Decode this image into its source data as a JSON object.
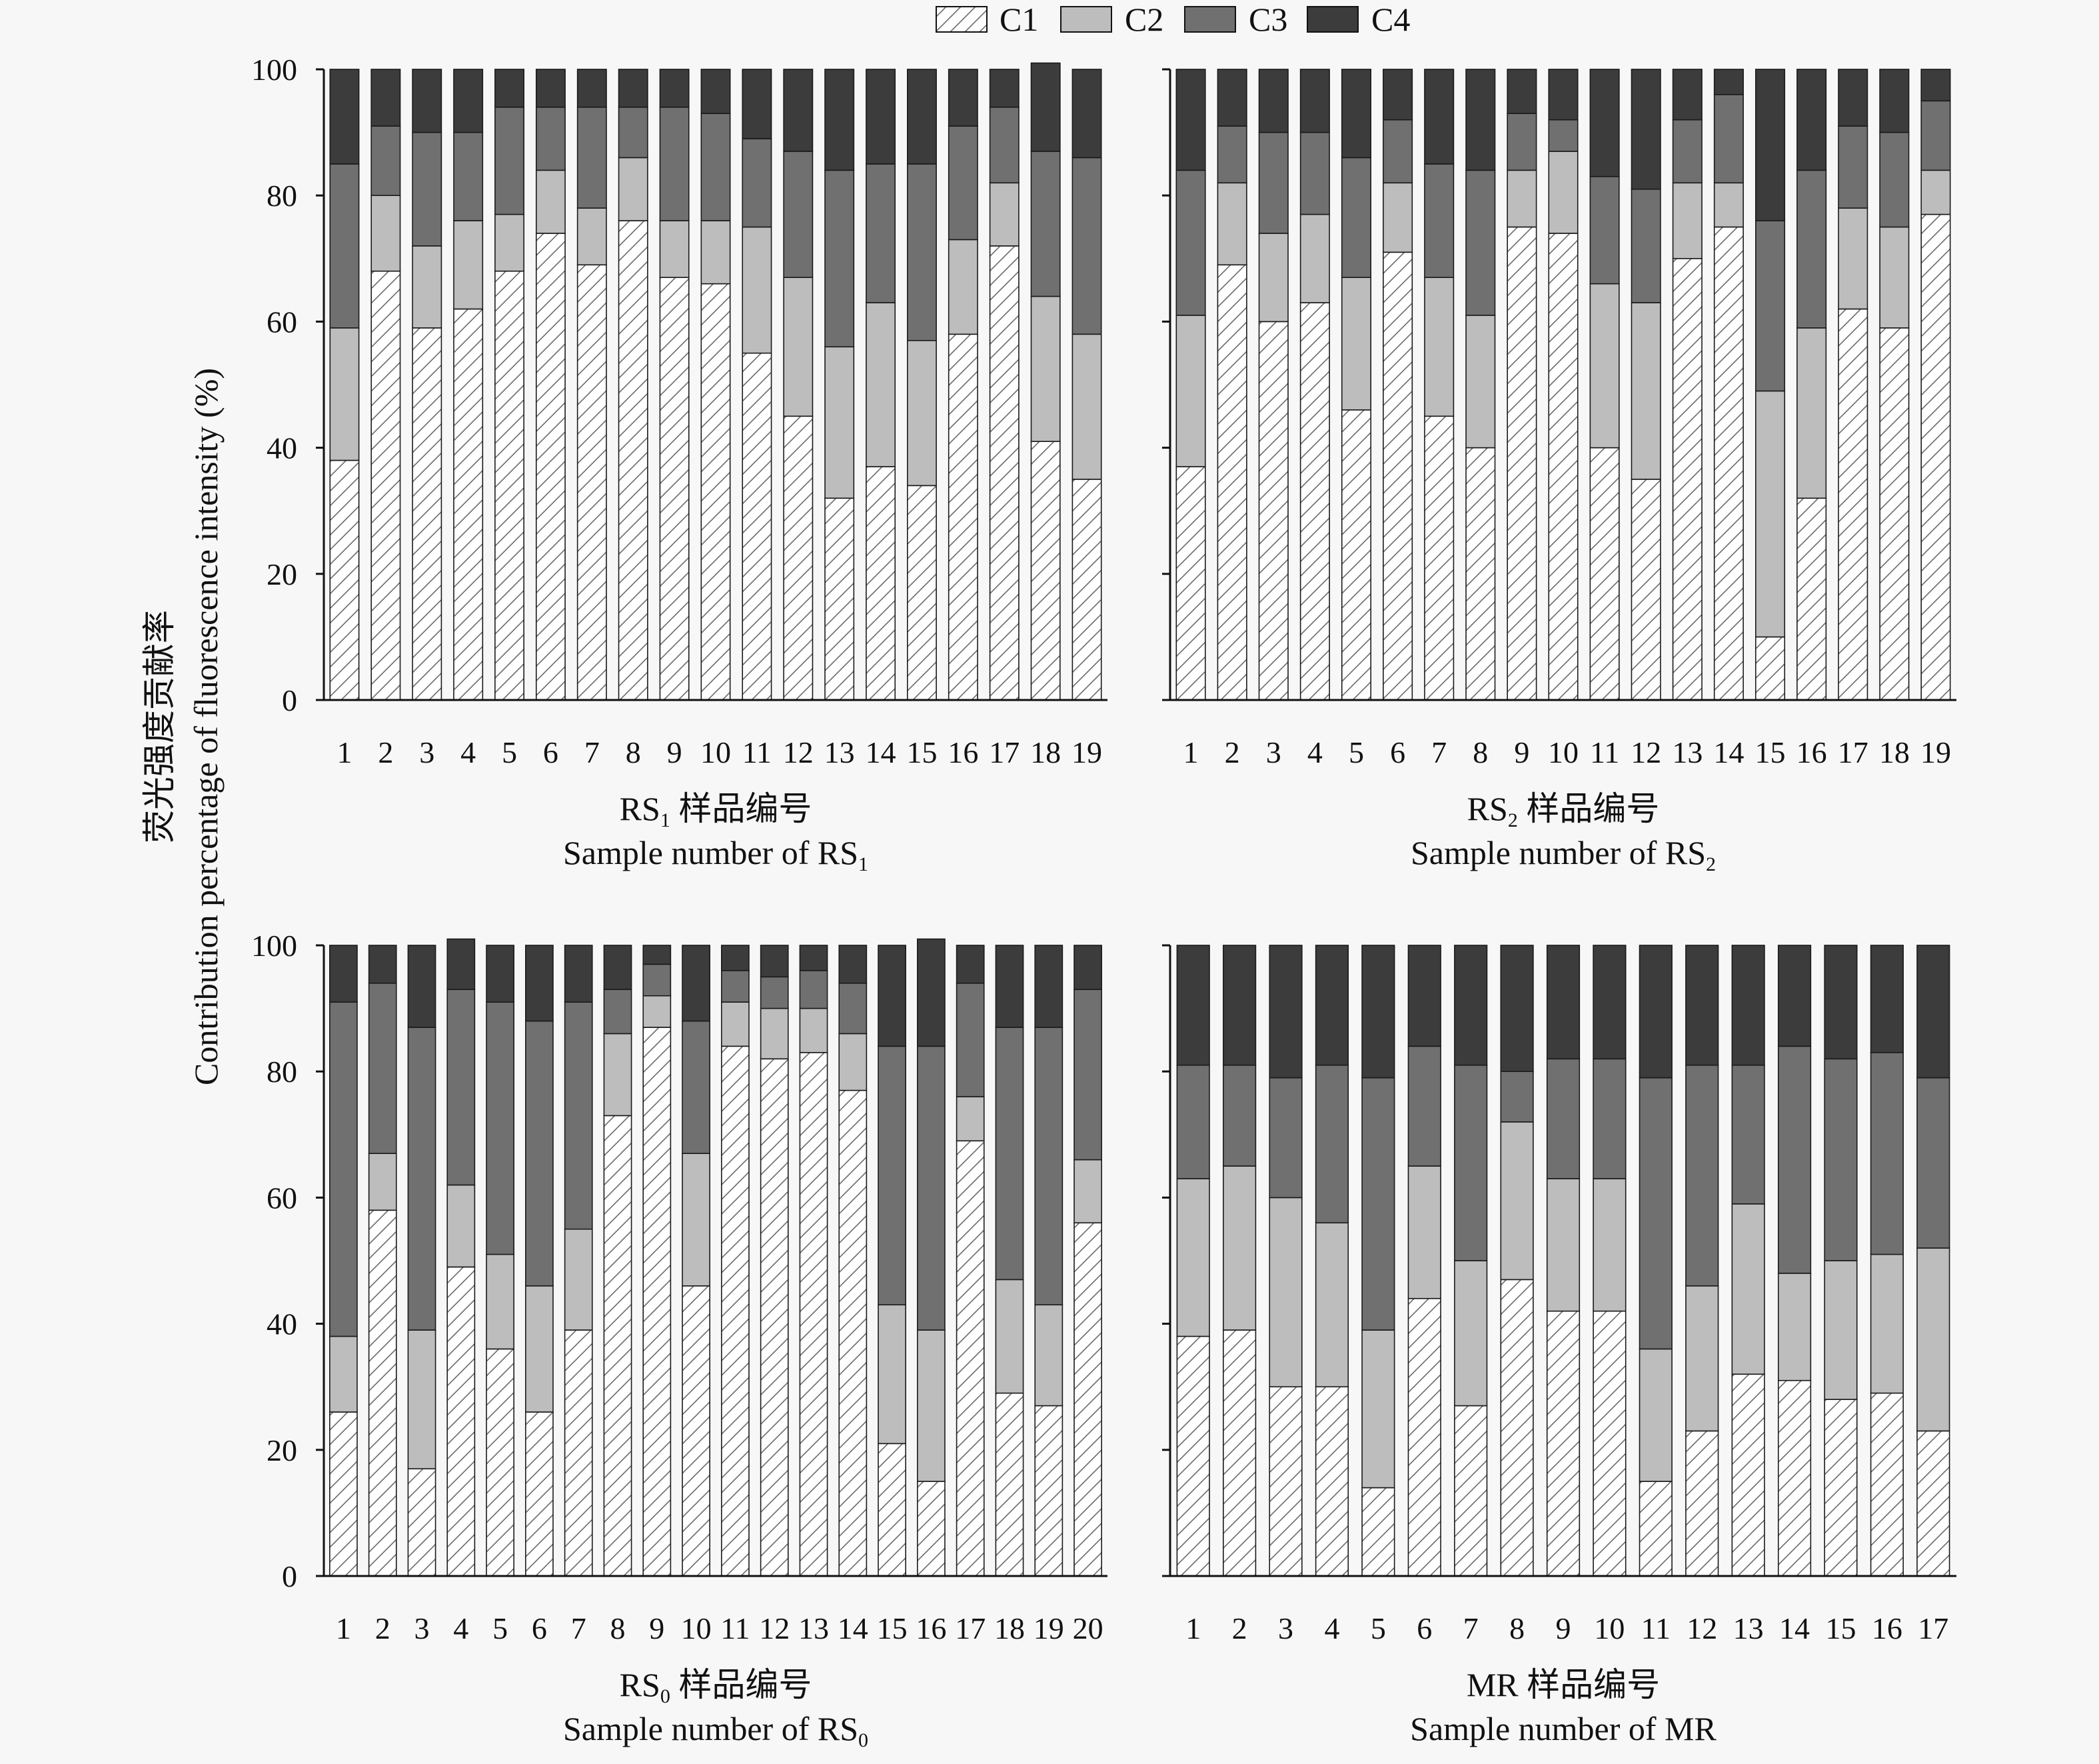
{
  "legend": [
    {
      "label": "C1",
      "pattern": "hatch",
      "color": "#ffffff"
    },
    {
      "label": "C2",
      "color": "#bdbdbd"
    },
    {
      "label": "C3",
      "color": "#707070"
    },
    {
      "label": "C4",
      "color": "#3c3c3c"
    }
  ],
  "ylabel_cn": "荧光强度贡献率",
  "ylabel_en": "Contribution percentage of fluorescence intensity (%)",
  "chart_data": [
    {
      "type": "bar",
      "stacked": true,
      "panel": "top-left",
      "xlabel_cn_prefix": "RS",
      "xlabel_cn_sub": "1",
      "xlabel_cn_suffix": " 样品编号",
      "xlabel_en_prefix": "Sample number of RS",
      "xlabel_en_sub": "1",
      "ylim": [
        0,
        100
      ],
      "yticks": [
        "0",
        "20",
        "40",
        "60",
        "80",
        "100"
      ],
      "categories": [
        "1",
        "2",
        "3",
        "4",
        "5",
        "6",
        "7",
        "8",
        "9",
        "10",
        "11",
        "12",
        "13",
        "14",
        "15",
        "16",
        "17",
        "18",
        "19"
      ],
      "series": [
        {
          "name": "C1",
          "values": [
            38,
            68,
            59,
            62,
            68,
            74,
            69,
            76,
            67,
            66,
            55,
            45,
            32,
            37,
            34,
            58,
            72,
            41,
            35
          ]
        },
        {
          "name": "C2",
          "values": [
            21,
            12,
            13,
            14,
            9,
            10,
            9,
            10,
            9,
            10,
            20,
            22,
            24,
            26,
            23,
            15,
            10,
            23,
            23
          ]
        },
        {
          "name": "C3",
          "values": [
            26,
            11,
            18,
            14,
            17,
            10,
            16,
            8,
            18,
            17,
            14,
            20,
            28,
            22,
            28,
            18,
            12,
            23,
            28
          ]
        },
        {
          "name": "C4",
          "values": [
            15,
            9,
            10,
            10,
            6,
            6,
            6,
            6,
            6,
            7,
            11,
            13,
            16,
            15,
            15,
            9,
            6,
            14,
            14
          ]
        }
      ]
    },
    {
      "type": "bar",
      "stacked": true,
      "panel": "top-right",
      "xlabel_cn_prefix": "RS",
      "xlabel_cn_sub": "2",
      "xlabel_cn_suffix": " 样品编号",
      "xlabel_en_prefix": "Sample number of RS",
      "xlabel_en_sub": "2",
      "ylim": [
        0,
        100
      ],
      "yticks": [],
      "categories": [
        "1",
        "2",
        "3",
        "4",
        "5",
        "6",
        "7",
        "8",
        "9",
        "10",
        "11",
        "12",
        "13",
        "14",
        "15",
        "16",
        "17",
        "18",
        "19"
      ],
      "series": [
        {
          "name": "C1",
          "values": [
            37,
            69,
            60,
            63,
            46,
            71,
            45,
            40,
            75,
            74,
            40,
            35,
            70,
            75,
            10,
            32,
            62,
            59,
            77
          ]
        },
        {
          "name": "C2",
          "values": [
            24,
            13,
            14,
            14,
            21,
            11,
            22,
            21,
            9,
            13,
            26,
            28,
            12,
            7,
            39,
            27,
            16,
            16,
            7
          ]
        },
        {
          "name": "C3",
          "values": [
            23,
            9,
            16,
            13,
            19,
            10,
            18,
            23,
            9,
            5,
            17,
            18,
            10,
            14,
            27,
            25,
            13,
            15,
            11
          ]
        },
        {
          "name": "C4",
          "values": [
            16,
            9,
            10,
            10,
            14,
            8,
            15,
            16,
            7,
            8,
            17,
            19,
            8,
            4,
            24,
            16,
            9,
            10,
            5
          ]
        }
      ]
    },
    {
      "type": "bar",
      "stacked": true,
      "panel": "bottom-left",
      "xlabel_cn_prefix": "RS",
      "xlabel_cn_sub": "0",
      "xlabel_cn_suffix": " 样品编号",
      "xlabel_en_prefix": "Sample number of RS",
      "xlabel_en_sub": "0",
      "ylim": [
        0,
        100
      ],
      "yticks": [
        "0",
        "20",
        "40",
        "60",
        "80",
        "100"
      ],
      "categories": [
        "1",
        "2",
        "3",
        "4",
        "5",
        "6",
        "7",
        "8",
        "9",
        "10",
        "11",
        "12",
        "13",
        "14",
        "15",
        "16",
        "17",
        "18",
        "19",
        "20"
      ],
      "series": [
        {
          "name": "C1",
          "values": [
            26,
            58,
            17,
            49,
            36,
            26,
            39,
            73,
            87,
            46,
            84,
            82,
            83,
            77,
            21,
            15,
            69,
            29,
            27,
            56
          ]
        },
        {
          "name": "C2",
          "values": [
            12,
            9,
            22,
            13,
            15,
            20,
            16,
            13,
            5,
            21,
            7,
            8,
            7,
            9,
            22,
            24,
            7,
            18,
            16,
            10
          ]
        },
        {
          "name": "C3",
          "values": [
            53,
            27,
            48,
            31,
            40,
            42,
            36,
            7,
            5,
            21,
            5,
            5,
            6,
            8,
            41,
            45,
            18,
            40,
            44,
            27
          ]
        },
        {
          "name": "C4",
          "values": [
            9,
            6,
            13,
            8,
            9,
            12,
            9,
            7,
            3,
            12,
            4,
            5,
            4,
            6,
            16,
            17,
            6,
            13,
            13,
            7
          ]
        }
      ]
    },
    {
      "type": "bar",
      "stacked": true,
      "panel": "bottom-right",
      "xlabel_cn_prefix": "MR",
      "xlabel_cn_sub": "",
      "xlabel_cn_suffix": " 样品编号",
      "xlabel_en_prefix": "Sample number of MR",
      "xlabel_en_sub": "",
      "ylim": [
        0,
        100
      ],
      "yticks": [],
      "categories": [
        "1",
        "2",
        "3",
        "4",
        "5",
        "6",
        "7",
        "8",
        "9",
        "10",
        "11",
        "12",
        "13",
        "14",
        "15",
        "16",
        "17"
      ],
      "series": [
        {
          "name": "C1",
          "values": [
            38,
            39,
            30,
            30,
            14,
            44,
            27,
            47,
            42,
            42,
            15,
            23,
            32,
            31,
            28,
            29,
            23
          ]
        },
        {
          "name": "C2",
          "values": [
            25,
            26,
            30,
            26,
            25,
            21,
            23,
            25,
            21,
            21,
            21,
            23,
            27,
            17,
            22,
            22,
            29
          ]
        },
        {
          "name": "C3",
          "values": [
            18,
            16,
            19,
            25,
            40,
            19,
            31,
            8,
            19,
            19,
            43,
            35,
            22,
            36,
            32,
            32,
            27
          ]
        },
        {
          "name": "C4",
          "values": [
            19,
            19,
            21,
            19,
            21,
            16,
            19,
            20,
            18,
            18,
            21,
            19,
            19,
            16,
            18,
            17,
            21
          ]
        }
      ]
    }
  ]
}
